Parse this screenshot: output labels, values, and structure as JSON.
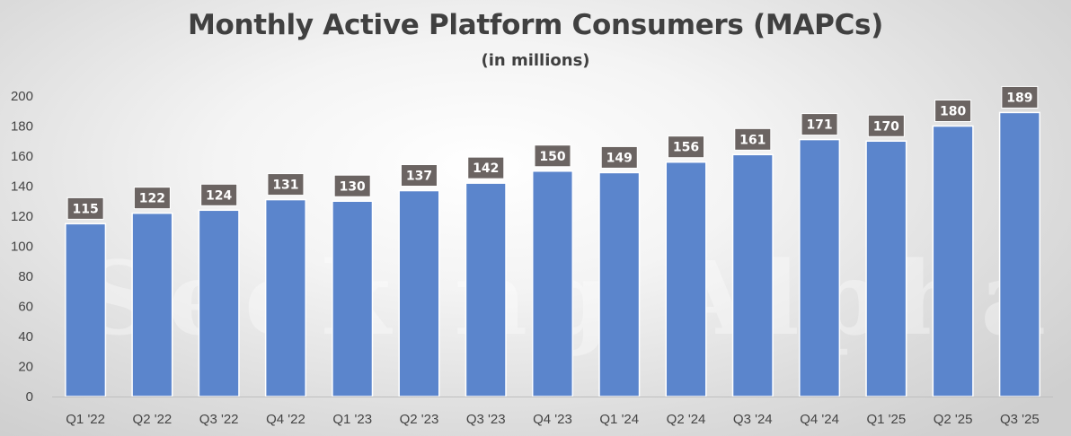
{
  "chart_data": {
    "type": "bar",
    "title": "Monthly Active Platform Consumers (MAPCs)",
    "subtitle": "(in millions)",
    "xlabel": "",
    "ylabel": "",
    "ylim": [
      0,
      200
    ],
    "yticks": [
      0,
      20,
      40,
      60,
      80,
      100,
      120,
      140,
      160,
      180,
      200
    ],
    "grid": false,
    "legend": "none",
    "categories": [
      "Q1 '22",
      "Q2 '22",
      "Q3 '22",
      "Q4 '22",
      "Q1 '23",
      "Q2 '23",
      "Q3 '23",
      "Q4 '23",
      "Q1 '24",
      "Q2 '24",
      "Q3 '24",
      "Q4 '24",
      "Q1 '25",
      "Q2 '25",
      "Q3 '25"
    ],
    "series": [
      {
        "name": "MAPCs",
        "values": [
          115,
          122,
          124,
          131,
          130,
          137,
          142,
          150,
          149,
          156,
          161,
          171,
          170,
          180,
          189
        ]
      }
    ],
    "watermark": "Seeking Alpha",
    "colors": {
      "bar": "#5b85cc",
      "bar_edge": "#ffffff",
      "label_box": "#6b6462",
      "label_text": "#ffffff",
      "axis_text": "#444444",
      "title_text": "#404040",
      "axis_line": "#bfbfbf"
    }
  }
}
